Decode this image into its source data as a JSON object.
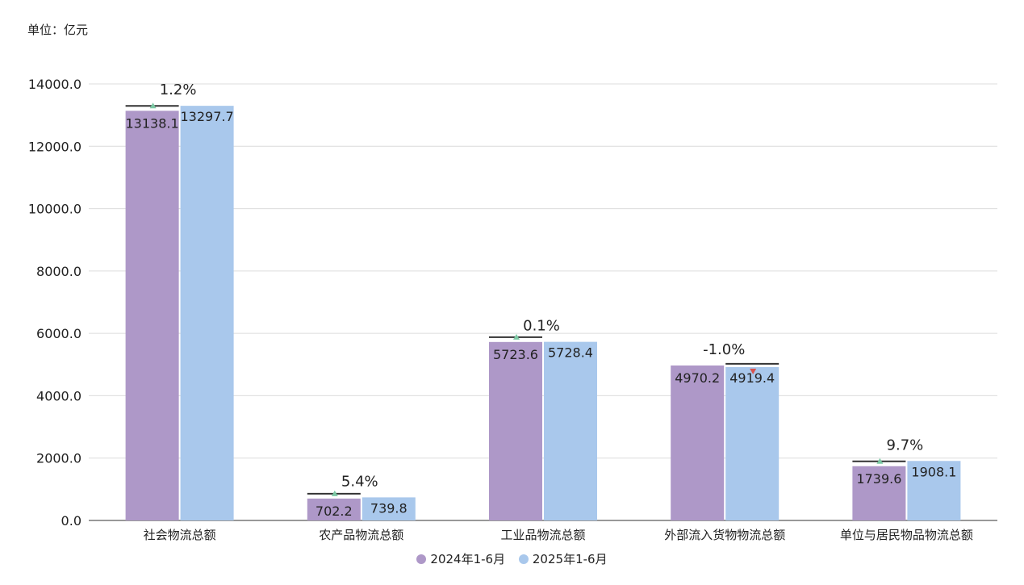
{
  "unit_label": "单位：亿元",
  "chart_data": {
    "type": "bar",
    "categories": [
      "社会物流总额",
      "农产品物流总额",
      "工业品物流总额",
      "外部流入货物物流总额",
      "单位与居民物品物流总额"
    ],
    "series": [
      {
        "name": "2024年1-6月",
        "color": "#ae98c8",
        "values": [
          13138.1,
          702.2,
          5723.6,
          4970.2,
          1739.6
        ],
        "labels": [
          "13138.1",
          "702.2",
          "5723.6",
          "4970.2",
          "1739.6"
        ]
      },
      {
        "name": "2025年1-6月",
        "color": "#a9c8ec",
        "values": [
          13297.7,
          739.8,
          5728.4,
          4919.4,
          1908.1
        ],
        "labels": [
          "13297.7",
          "739.8",
          "5728.4",
          "4919.4",
          "1908.1"
        ]
      }
    ],
    "growth_labels": [
      "1.2%",
      "5.4%",
      "0.1%",
      "-1.0%",
      "9.7%"
    ],
    "growth_direction": [
      "up",
      "up",
      "up",
      "down",
      "up"
    ],
    "up_color": "#7cc8a4",
    "down_color": "#d9534f",
    "ylim": [
      0,
      14000
    ],
    "yticks": [
      0,
      2000,
      4000,
      6000,
      8000,
      10000,
      12000,
      14000
    ],
    "ytick_labels": [
      "0.0",
      "2000.0",
      "4000.0",
      "6000.0",
      "8000.0",
      "10000.0",
      "12000.0",
      "14000.0"
    ],
    "grid": true,
    "legend_position": "bottom"
  }
}
